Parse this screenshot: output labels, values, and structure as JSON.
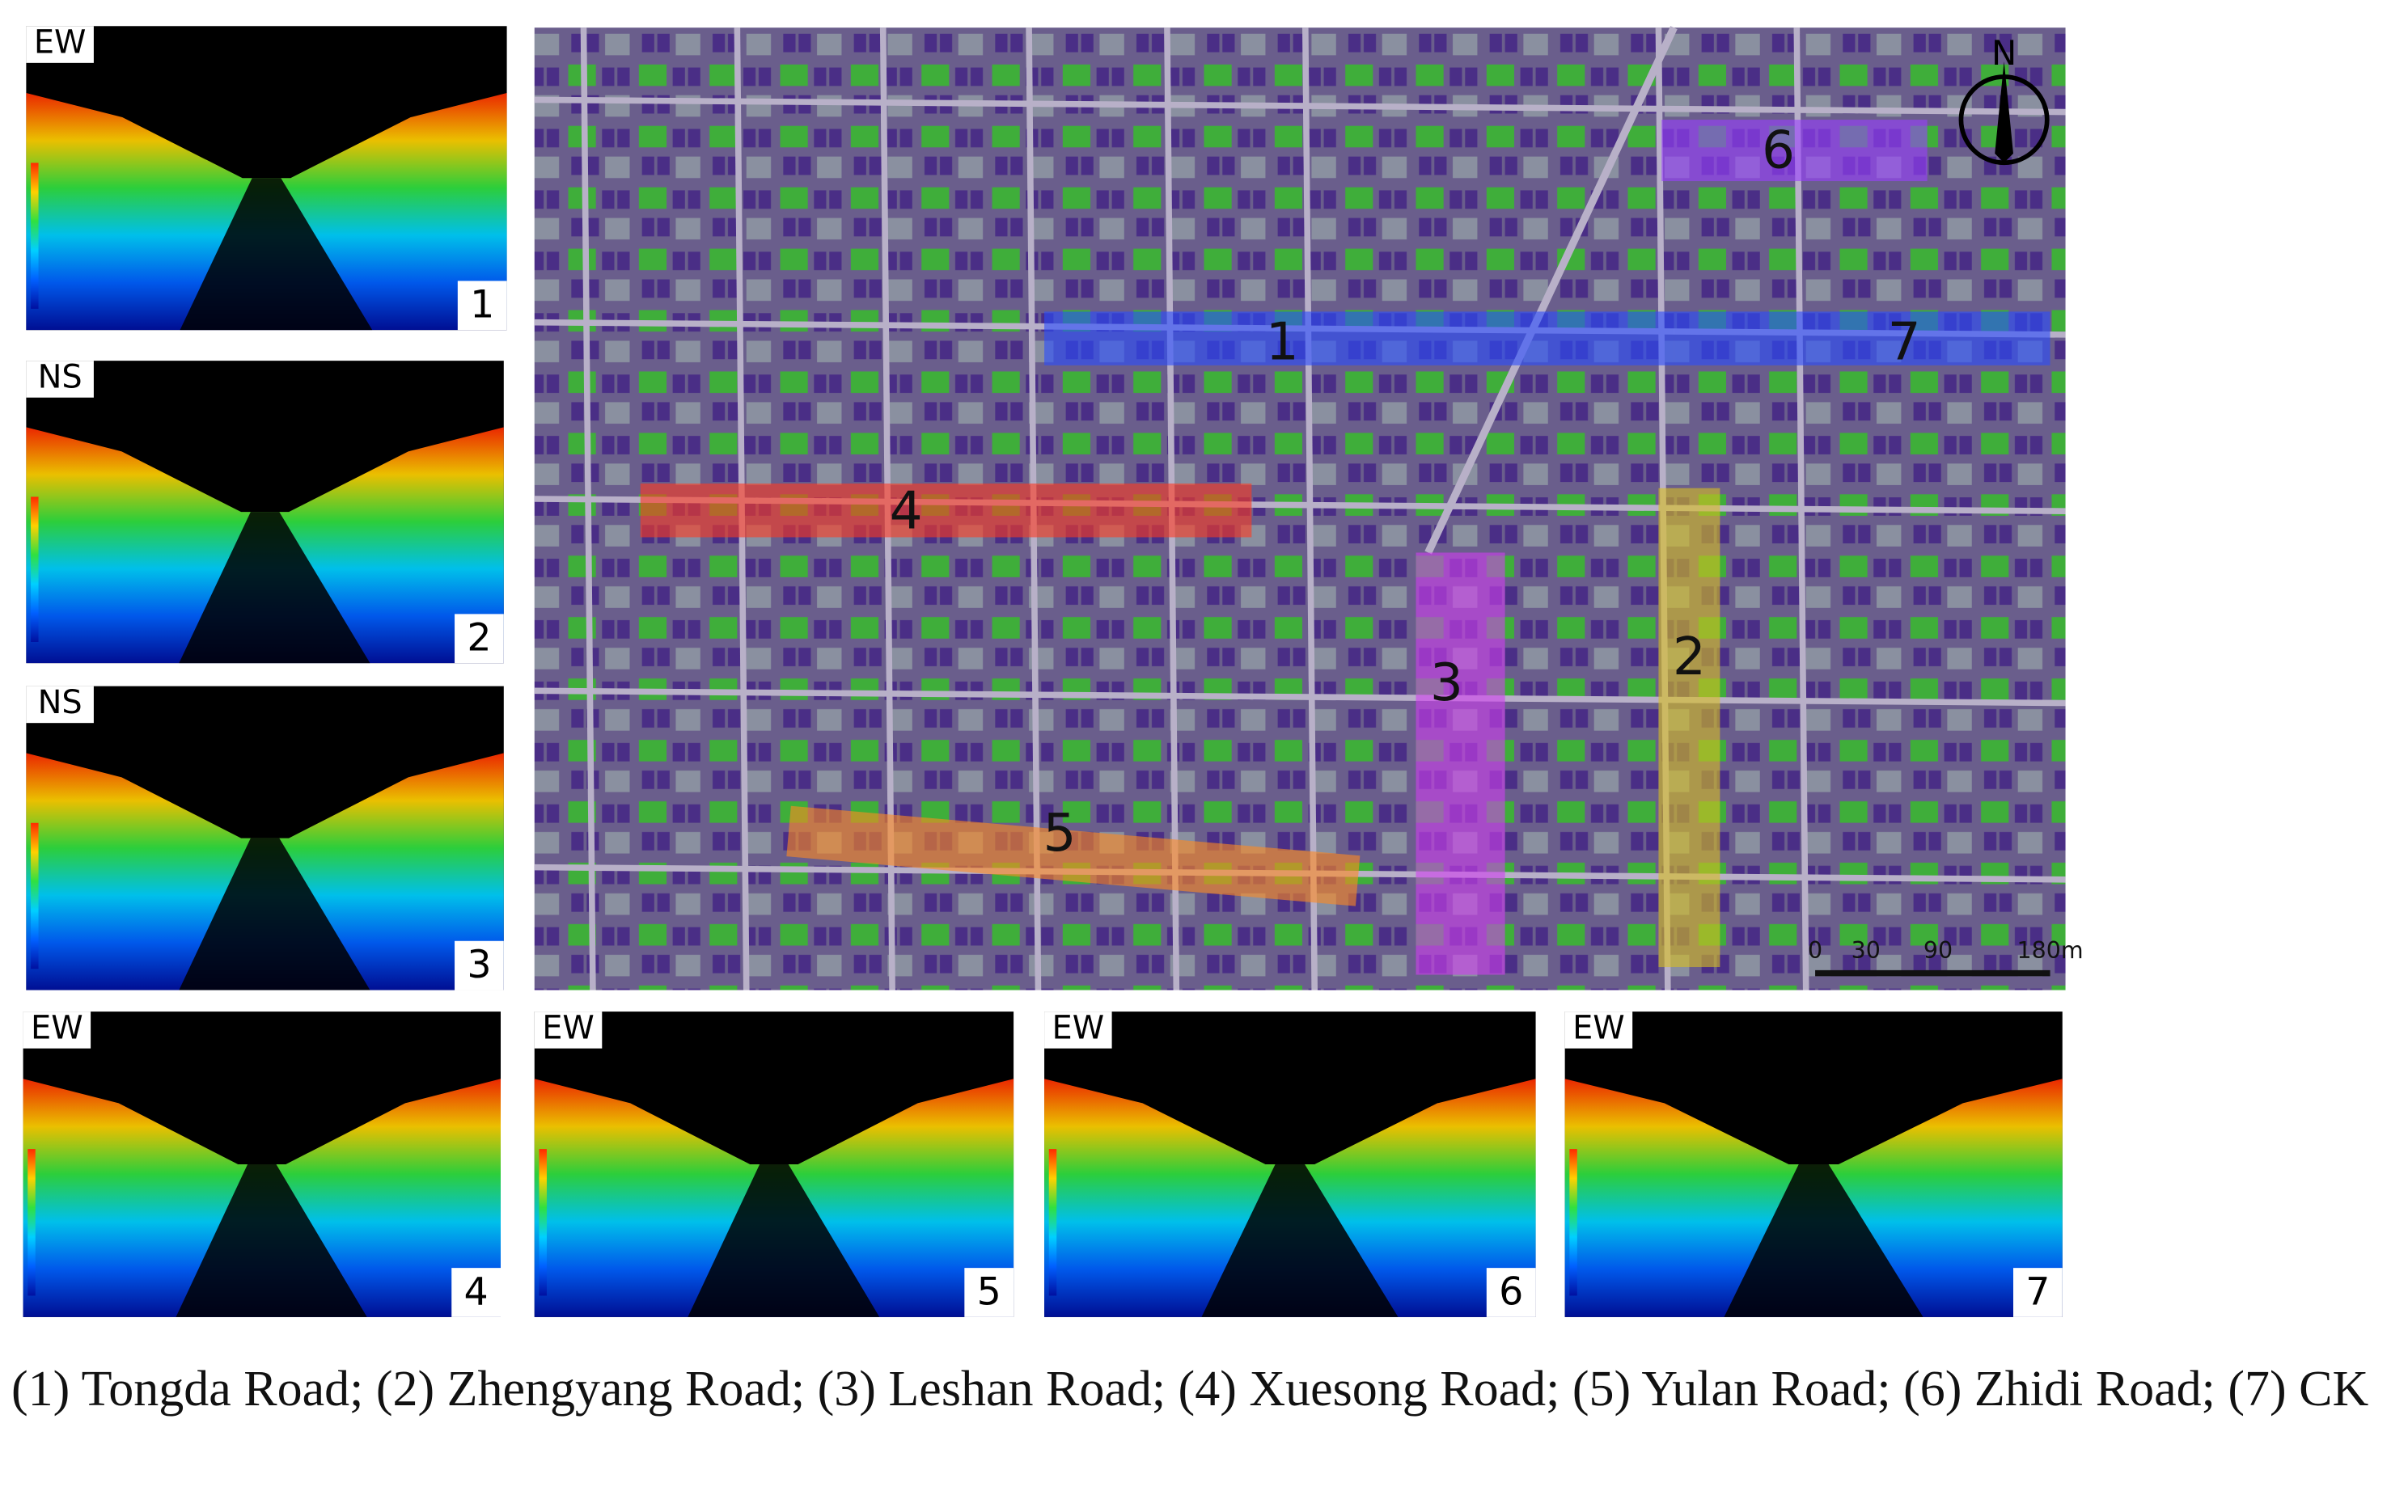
{
  "panels": [
    {
      "direction": "EW",
      "number": "1"
    },
    {
      "direction": "NS",
      "number": "2"
    },
    {
      "direction": "NS",
      "number": "3"
    },
    {
      "direction": "EW",
      "number": "4"
    },
    {
      "direction": "EW",
      "number": "5"
    },
    {
      "direction": "EW",
      "number": "6"
    },
    {
      "direction": "EW",
      "number": "7"
    }
  ],
  "map": {
    "compass": "N",
    "scale_labels": [
      "0",
      "30",
      "90",
      "180m"
    ],
    "roads": [
      {
        "label": "1",
        "color": "#2a4cff"
      },
      {
        "label": "2",
        "color": "#d8c020"
      },
      {
        "label": "3",
        "color": "#d040f0"
      },
      {
        "label": "4",
        "color": "#ff3a20"
      },
      {
        "label": "5",
        "color": "#ff8a20"
      },
      {
        "label": "6",
        "color": "#9a40ff"
      },
      {
        "label": "7",
        "color": "#2a4cff"
      }
    ]
  },
  "caption": "(1) Tongda Road; (2) Zhengyang Road; (3) Leshan Road; (4) Xuesong Road; (5) Yulan Road; (6) Zhidi Road; (7) CK"
}
